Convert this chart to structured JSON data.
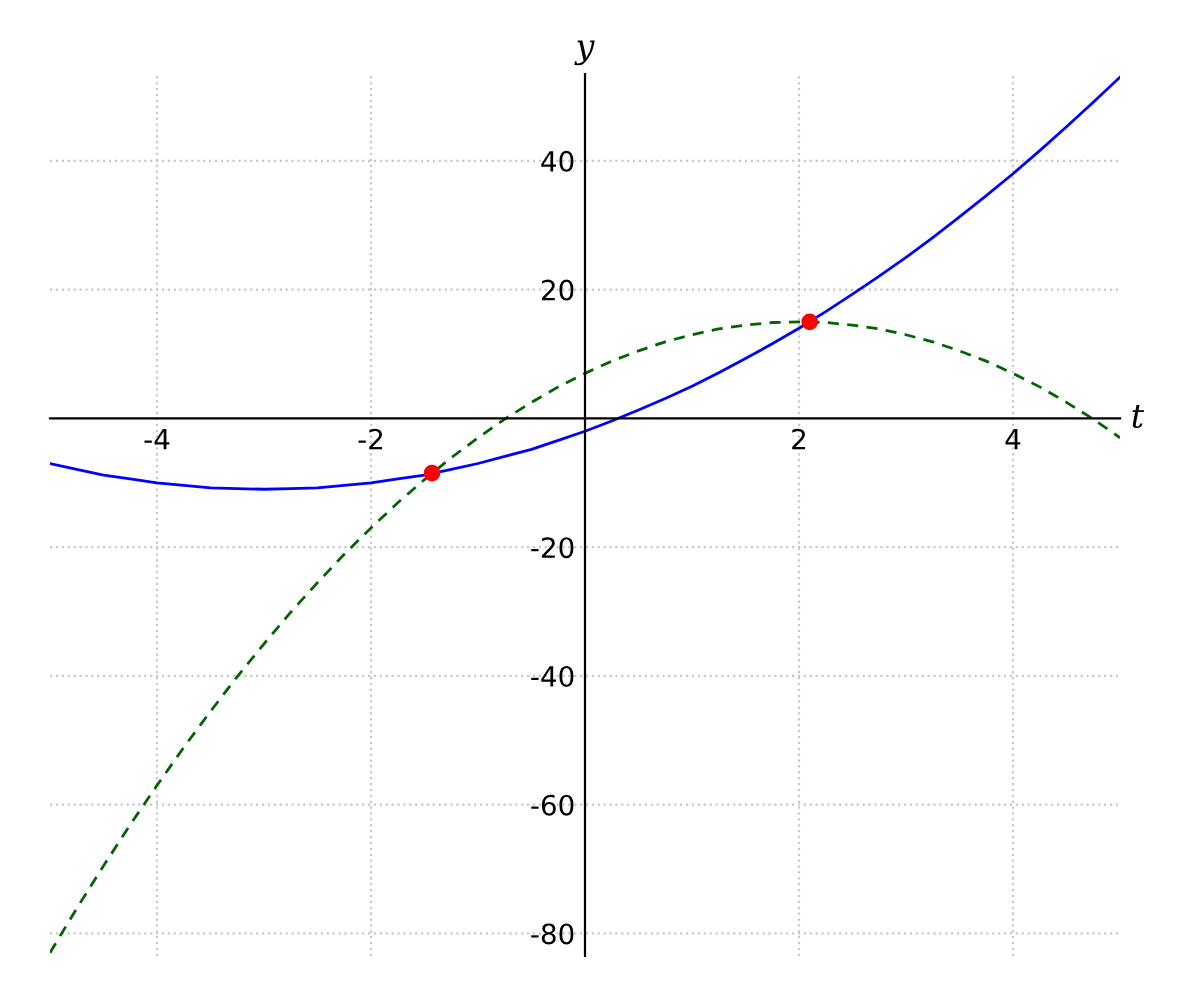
{
  "chart_data": {
    "type": "line",
    "xlabel": "t",
    "ylabel": "y",
    "xlim": [
      -5,
      5
    ],
    "ylim": [
      -83.5,
      53.5
    ],
    "xticks": [
      -4,
      -2,
      2,
      4
    ],
    "yticks": [
      -80,
      -60,
      -40,
      -20,
      20,
      40
    ],
    "grid": true,
    "x": [
      -5,
      -4.75,
      -4.5,
      -4.25,
      -4,
      -3.75,
      -3.5,
      -3.25,
      -3,
      -2.75,
      -2.5,
      -2.25,
      -2,
      -1.75,
      -1.5,
      -1.25,
      -1,
      -0.75,
      -0.5,
      -0.25,
      0,
      0.25,
      0.5,
      0.75,
      1,
      1.25,
      1.5,
      1.75,
      2,
      2.25,
      2.5,
      2.75,
      3,
      3.25,
      3.5,
      3.75,
      4,
      4.25,
      4.5,
      4.75,
      5
    ],
    "series": [
      {
        "color": "#0000ff",
        "line_style": "solid",
        "marker": "none",
        "values": [
          -7,
          -7.9,
          -8.8,
          -9.4,
          -10,
          -10.4,
          -10.8,
          -10.9,
          -11,
          -10.9,
          -10.8,
          -10.4,
          -10,
          -9.4,
          -8.8,
          -7.9,
          -7,
          -5.9,
          -4.8,
          -3.4,
          -2,
          -0.4,
          1.3,
          3.1,
          5,
          7.1,
          9.3,
          11.6,
          14,
          16.6,
          19.3,
          22.1,
          25,
          28.1,
          31.3,
          34.6,
          38,
          41.6,
          45.3,
          49.1,
          53
        ]
      },
      {
        "color": "#006400",
        "line_style": "dashed",
        "marker": "none",
        "values": [
          -83,
          -76.1,
          -69.5,
          -63.1,
          -57,
          -51.1,
          -45.5,
          -40.1,
          -35,
          -30.1,
          -25.5,
          -21.1,
          -17,
          -13.1,
          -9.5,
          -6.1,
          -3,
          -0.1,
          2.5,
          4.9,
          7,
          8.9,
          10.5,
          11.9,
          13,
          13.9,
          14.5,
          14.9,
          15,
          14.9,
          14.5,
          13.9,
          13,
          11.9,
          10.5,
          8.9,
          7,
          4.9,
          2.5,
          -0.1,
          -3
        ]
      },
      {
        "type": "scatter",
        "color": "#ff0000",
        "marker": "circle",
        "x": [
          -1.43,
          2.1
        ],
        "values": [
          -8.5,
          15
        ]
      }
    ]
  }
}
